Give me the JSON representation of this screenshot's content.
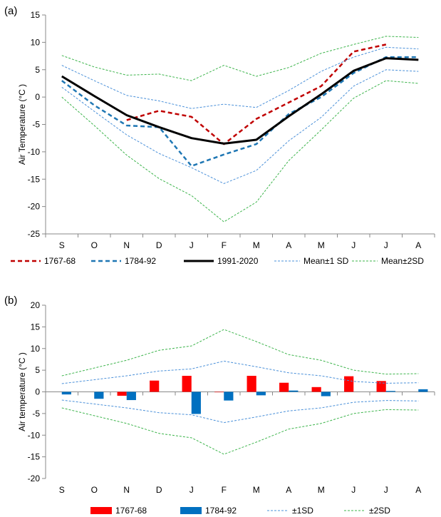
{
  "chart_data": [
    {
      "panel_label": "(a)",
      "type": "line",
      "categories": [
        "S",
        "O",
        "N",
        "D",
        "J",
        "F",
        "M",
        "A",
        "M",
        "J",
        "J",
        "A"
      ],
      "ylabel": "Air Temperature (°C )",
      "ylim": [
        -25,
        15
      ],
      "yticks": [
        -25,
        -20,
        -15,
        -10,
        -5,
        0,
        5,
        10,
        15
      ],
      "grid": false,
      "legend_position": "bottom",
      "series": [
        {
          "name": "1767-68",
          "style": "dashed",
          "color": "#c00000",
          "values": [
            null,
            null,
            -4.2,
            -2.5,
            -3.6,
            -8.6,
            -4.0,
            -1.0,
            2.0,
            8.3,
            9.6,
            null
          ]
        },
        {
          "name": "1784-92",
          "style": "dashed",
          "color": "#1f77b4",
          "values": [
            3.0,
            -1.5,
            -5.2,
            -5.5,
            -12.6,
            -10.5,
            -8.6,
            -3.1,
            0.0,
            4.4,
            7.3,
            7.3
          ]
        },
        {
          "name": "1991-2020",
          "style": "solid",
          "color": "#000000",
          "values": [
            3.8,
            0.2,
            -3.3,
            -5.5,
            -7.5,
            -8.5,
            -7.8,
            -3.5,
            0.5,
            4.8,
            7.1,
            6.8
          ]
        },
        {
          "name": "Mean±1 SD",
          "style": "thin-dashed",
          "color": "#4a90d9",
          "values": [
            5.8,
            3.0,
            0.3,
            -0.7,
            -2.1,
            -1.3,
            -1.9,
            1.2,
            4.7,
            7.3,
            9.1,
            8.8
          ]
        },
        {
          "name": "",
          "style": "thin-dashed",
          "color": "#4a90d9",
          "values": [
            1.8,
            -2.6,
            -6.9,
            -10.3,
            -12.9,
            -15.8,
            -13.4,
            -8.0,
            -3.7,
            2.0,
            5.0,
            4.7
          ]
        },
        {
          "name": "Mean±2SD",
          "style": "thin-dashed",
          "color": "#3cb44b",
          "values": [
            7.6,
            5.5,
            4.0,
            4.2,
            3.0,
            5.8,
            3.8,
            5.4,
            8.0,
            9.6,
            11.1,
            10.9
          ]
        },
        {
          "name": "",
          "style": "thin-dashed",
          "color": "#3cb44b",
          "values": [
            0.0,
            -5.2,
            -10.6,
            -14.9,
            -18.0,
            -22.8,
            -19.2,
            -11.6,
            -6.0,
            -0.2,
            3.0,
            2.5
          ]
        }
      ]
    },
    {
      "panel_label": "(b)",
      "type": "bar",
      "categories": [
        "S",
        "O",
        "N",
        "D",
        "J",
        "F",
        "M",
        "A",
        "M",
        "J",
        "J",
        "A"
      ],
      "ylabel": "Air temperature (°C )",
      "ylim": [
        -20,
        20
      ],
      "yticks": [
        -20,
        -15,
        -10,
        -5,
        0,
        5,
        10,
        15,
        20
      ],
      "grid": false,
      "legend_position": "bottom",
      "series": [
        {
          "name": "1767-68",
          "kind": "bar",
          "color": "#ff0000",
          "values": [
            0,
            0,
            -0.9,
            2.6,
            3.7,
            -0.1,
            3.7,
            2.1,
            1.1,
            3.6,
            2.5,
            0
          ]
        },
        {
          "name": "1784-92",
          "kind": "bar",
          "color": "#0070c0",
          "values": [
            -0.6,
            -1.6,
            -1.9,
            0,
            -5.1,
            -2.0,
            -0.8,
            0.3,
            -1.0,
            0,
            0.2,
            0.6
          ]
        },
        {
          "name": "±1SD",
          "kind": "line",
          "style": "thin-dashed",
          "color": "#4a90d9",
          "values": [
            1.9,
            2.8,
            3.7,
            4.8,
            5.3,
            7.1,
            5.8,
            4.4,
            3.7,
            2.4,
            2.0,
            2.1
          ]
        },
        {
          "name": "",
          "kind": "line",
          "style": "thin-dashed",
          "color": "#4a90d9",
          "values": [
            -1.9,
            -2.8,
            -3.7,
            -4.8,
            -5.3,
            -7.1,
            -5.8,
            -4.4,
            -3.7,
            -2.4,
            -2.0,
            -2.1
          ]
        },
        {
          "name": "±2SD",
          "kind": "line",
          "style": "thin-dashed",
          "color": "#3cb44b",
          "values": [
            3.7,
            5.5,
            7.3,
            9.6,
            10.6,
            14.4,
            11.6,
            8.6,
            7.3,
            5.0,
            4.1,
            4.2
          ]
        },
        {
          "name": "",
          "kind": "line",
          "style": "thin-dashed",
          "color": "#3cb44b",
          "values": [
            -3.7,
            -5.5,
            -7.3,
            -9.6,
            -10.6,
            -14.4,
            -11.6,
            -8.6,
            -7.3,
            -5.0,
            -4.1,
            -4.2
          ]
        }
      ]
    }
  ]
}
